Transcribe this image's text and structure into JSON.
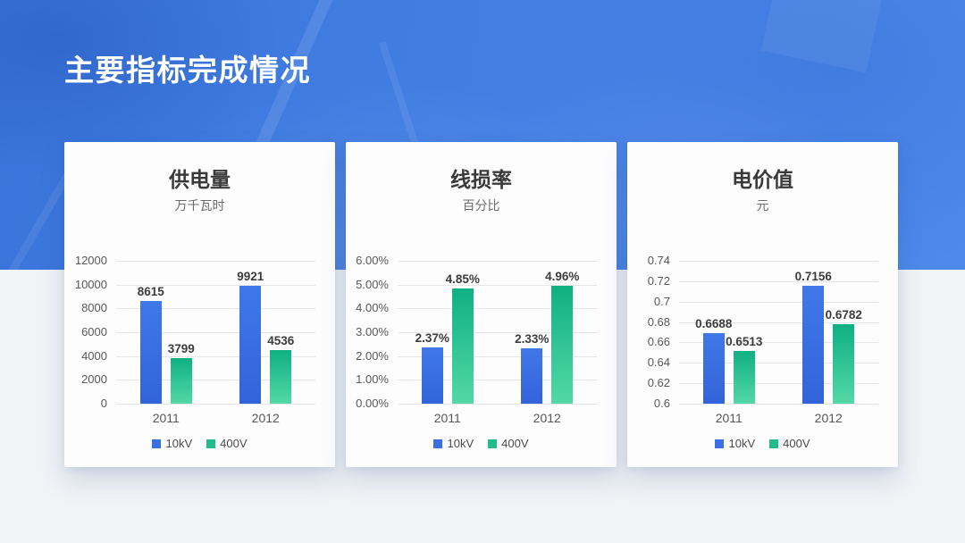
{
  "slide": {
    "title": "主要指标完成情况"
  },
  "colors": {
    "hero_blue": "#4480E4",
    "page_background": "#F1F3F6",
    "card_background": "#FDFDFE",
    "series_10kV": "#3A70E3",
    "series_400V": "#22BB8C"
  },
  "chart_data": [
    {
      "type": "bar",
      "title": "供电量",
      "subtitle": "万千瓦时",
      "categories": [
        "2011",
        "2012"
      ],
      "series": [
        {
          "name": "10kV",
          "color": "#3A70E3",
          "gradient": [
            "#4078E8",
            "#3263DA"
          ],
          "values": [
            8615,
            9921
          ],
          "labels": [
            "8615",
            "9921"
          ]
        },
        {
          "name": "400V",
          "color": "#22BB8C",
          "gradient": [
            "#0FB083",
            "#53D8A6"
          ],
          "values": [
            3799,
            4536
          ],
          "labels": [
            "3799",
            "4536"
          ]
        }
      ],
      "ylim": [
        0,
        12000
      ],
      "yticks": [
        12000,
        10000,
        8000,
        6000,
        4000,
        2000,
        0
      ],
      "ytick_labels": [
        "12000",
        "10000",
        "8000",
        "6000",
        "4000",
        "2000",
        "0"
      ],
      "legend": [
        "10kV",
        "400V"
      ],
      "legend_position": "bottom",
      "grid": true
    },
    {
      "type": "bar",
      "title": "线损率",
      "subtitle": "百分比",
      "categories": [
        "2011",
        "2012"
      ],
      "series": [
        {
          "name": "10kV",
          "color": "#3A70E3",
          "gradient": [
            "#4078E8",
            "#3263DA"
          ],
          "values": [
            2.37,
            2.33
          ],
          "labels": [
            "2.37%",
            "2.33%"
          ]
        },
        {
          "name": "400V",
          "color": "#22BB8C",
          "gradient": [
            "#0FB083",
            "#53D8A6"
          ],
          "values": [
            4.85,
            4.96
          ],
          "labels": [
            "4.85%",
            "4.96%"
          ]
        }
      ],
      "ylim": [
        0,
        6
      ],
      "yticks": [
        6,
        5,
        4,
        3,
        2,
        1,
        0
      ],
      "ytick_labels": [
        "6.00%",
        "5.00%",
        "4.00%",
        "3.00%",
        "2.00%",
        "1.00%",
        "0.00%"
      ],
      "legend": [
        "10kV",
        "400V"
      ],
      "legend_position": "bottom",
      "grid": true
    },
    {
      "type": "bar",
      "title": "电价值",
      "subtitle": "元",
      "categories": [
        "2011",
        "2012"
      ],
      "series": [
        {
          "name": "10kV",
          "color": "#3A70E3",
          "gradient": [
            "#4078E8",
            "#3263DA"
          ],
          "values": [
            0.6688,
            0.7156
          ],
          "labels": [
            "0.6688",
            "0.7156"
          ]
        },
        {
          "name": "400V",
          "color": "#22BB8C",
          "gradient": [
            "#0FB083",
            "#53D8A6"
          ],
          "values": [
            0.6513,
            0.6782
          ],
          "labels": [
            "0.6513",
            "0.6782"
          ]
        }
      ],
      "ylim": [
        0.6,
        0.74
      ],
      "yticks": [
        0.74,
        0.72,
        0.7,
        0.68,
        0.66,
        0.64,
        0.62,
        0.6
      ],
      "ytick_labels": [
        "0.74",
        "0.72",
        "0.7",
        "0.68",
        "0.66",
        "0.64",
        "0.62",
        "0.6"
      ],
      "legend": [
        "10kV",
        "400V"
      ],
      "legend_position": "bottom",
      "grid": true
    }
  ]
}
